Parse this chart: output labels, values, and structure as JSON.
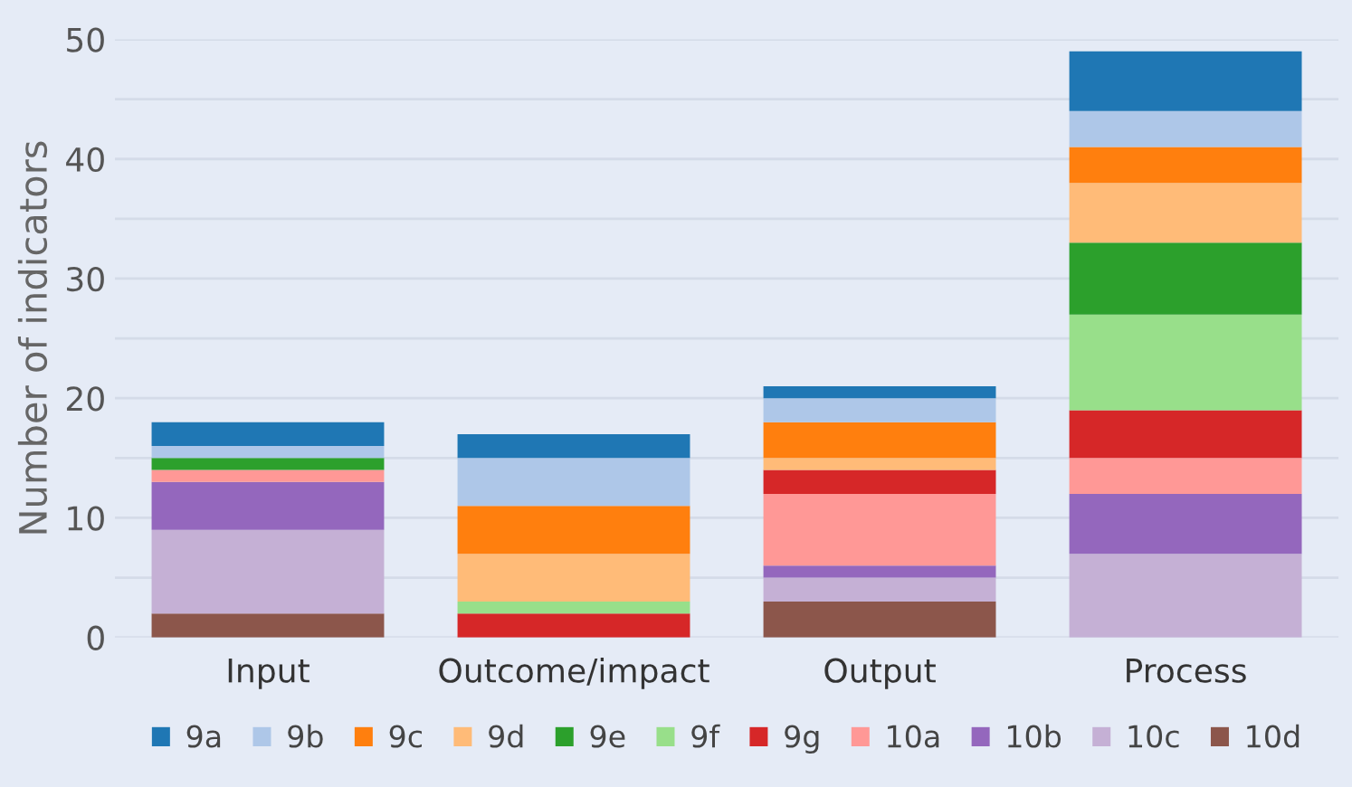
{
  "chart_data": {
    "type": "bar",
    "stacked": true,
    "ylabel": "Number of indicators",
    "categories": [
      "Input",
      "Outcome/impact",
      "Output",
      "Process"
    ],
    "series": [
      {
        "name": "10d",
        "color": "#8c564b",
        "values": [
          2,
          0,
          3,
          0
        ]
      },
      {
        "name": "10c",
        "color": "#c5b0d5",
        "values": [
          7,
          0,
          2,
          7
        ]
      },
      {
        "name": "10b",
        "color": "#9467bd",
        "values": [
          4,
          0,
          1,
          5
        ]
      },
      {
        "name": "10a",
        "color": "#ff9896",
        "values": [
          1,
          0,
          6,
          3
        ]
      },
      {
        "name": "9g",
        "color": "#d62728",
        "values": [
          0,
          2,
          2,
          4
        ]
      },
      {
        "name": "9f",
        "color": "#98df8a",
        "values": [
          0,
          1,
          0,
          8
        ]
      },
      {
        "name": "9e",
        "color": "#2ca02c",
        "values": [
          1,
          0,
          0,
          6
        ]
      },
      {
        "name": "9d",
        "color": "#ffbb78",
        "values": [
          0,
          4,
          1,
          5
        ]
      },
      {
        "name": "9c",
        "color": "#ff7f0e",
        "values": [
          0,
          4,
          3,
          3
        ]
      },
      {
        "name": "9b",
        "color": "#aec7e8",
        "values": [
          1,
          4,
          2,
          3
        ]
      },
      {
        "name": "9a",
        "color": "#1f77b4",
        "values": [
          2,
          2,
          1,
          5
        ]
      }
    ],
    "ylim": [
      0,
      50
    ],
    "yticks": [
      0,
      {
        "value": 5,
        "label": null
      },
      10,
      {
        "value": 15,
        "label": null
      },
      20,
      {
        "value": 25,
        "label": null
      },
      30,
      {
        "value": 35,
        "label": null
      },
      40,
      {
        "value": 45,
        "label": null
      },
      50
    ],
    "grid": "y",
    "legend": "bottom"
  }
}
